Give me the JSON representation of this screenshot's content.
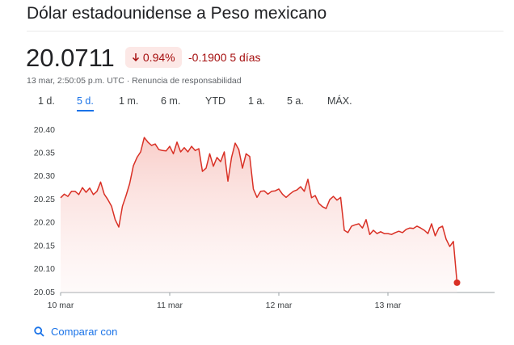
{
  "title": "Dólar estadounidense a Peso mexicano",
  "price": "20.0711",
  "change_pct": "0.94%",
  "change": "-0.1900",
  "period": "5 días",
  "timestamp": "13 mar, 2:50:05 p.m. UTC",
  "disclaimer": "Renuncia de responsabilidad",
  "separator": "·",
  "tabs": [
    "1 d.",
    "5 d.",
    "1 m.",
    "6 m.",
    "YTD",
    "1 a.",
    "5 a.",
    "MÁX."
  ],
  "compare": "Comparar con",
  "chart_data": {
    "type": "line",
    "color": "#d93025",
    "grid": false,
    "categories": [
      "10 mar",
      null,
      null,
      null,
      null,
      null,
      null,
      null,
      null,
      null,
      null,
      null,
      null,
      null,
      null,
      null,
      null,
      null,
      null,
      null,
      null,
      null,
      null,
      null,
      null,
      null,
      null,
      null,
      null,
      null,
      "11 mar",
      null,
      null,
      null,
      null,
      null,
      null,
      null,
      null,
      null,
      null,
      null,
      null,
      null,
      null,
      null,
      null,
      null,
      null,
      null,
      null,
      null,
      null,
      null,
      null,
      null,
      null,
      null,
      null,
      null,
      "12 mar",
      null,
      null,
      null,
      null,
      null,
      null,
      null,
      null,
      null,
      null,
      null,
      null,
      null,
      null,
      null,
      null,
      null,
      null,
      null,
      null,
      null,
      null,
      null,
      null,
      null,
      null,
      null,
      null,
      null,
      "13 mar",
      null,
      null,
      null,
      null,
      null,
      null,
      null,
      null,
      null,
      null,
      null,
      null,
      null,
      null,
      null,
      null,
      null,
      null,
      null
    ],
    "values": [
      20.254,
      20.262,
      20.257,
      20.268,
      20.268,
      20.261,
      20.276,
      20.266,
      20.275,
      20.261,
      20.268,
      20.288,
      20.262,
      20.25,
      20.236,
      20.207,
      20.191,
      20.236,
      20.259,
      20.285,
      20.323,
      20.341,
      20.353,
      20.384,
      20.374,
      20.367,
      20.37,
      20.358,
      20.356,
      20.355,
      20.365,
      20.349,
      20.374,
      20.353,
      20.362,
      20.353,
      20.365,
      20.356,
      20.36,
      20.311,
      20.318,
      20.349,
      20.322,
      20.341,
      20.332,
      20.353,
      20.29,
      20.341,
      20.372,
      20.358,
      20.318,
      20.349,
      20.343,
      20.273,
      20.255,
      20.268,
      20.269,
      20.262,
      20.268,
      20.269,
      20.273,
      20.262,
      20.255,
      20.262,
      20.268,
      20.271,
      20.278,
      20.268,
      20.294,
      20.254,
      20.259,
      20.242,
      20.235,
      20.231,
      20.25,
      20.257,
      20.249,
      20.255,
      20.184,
      20.179,
      20.193,
      20.196,
      20.198,
      20.189,
      20.207,
      20.175,
      20.184,
      20.177,
      20.181,
      20.177,
      20.177,
      20.175,
      20.179,
      20.182,
      20.179,
      20.186,
      20.189,
      20.188,
      20.193,
      20.189,
      20.184,
      20.177,
      20.198,
      20.172,
      20.189,
      20.193,
      20.165,
      20.149,
      20.16,
      20.0711
    ],
    "ylim": [
      20.05,
      20.4
    ],
    "yticks": [
      20.05,
      {
        "value": 20.1,
        "label": "20.10"
      },
      20.15,
      {
        "value": 20.2,
        "label": "20.20"
      },
      20.25,
      {
        "value": 20.3,
        "label": "20.30"
      },
      20.35,
      {
        "value": 20.4,
        "label": "20.40"
      }
    ]
  }
}
